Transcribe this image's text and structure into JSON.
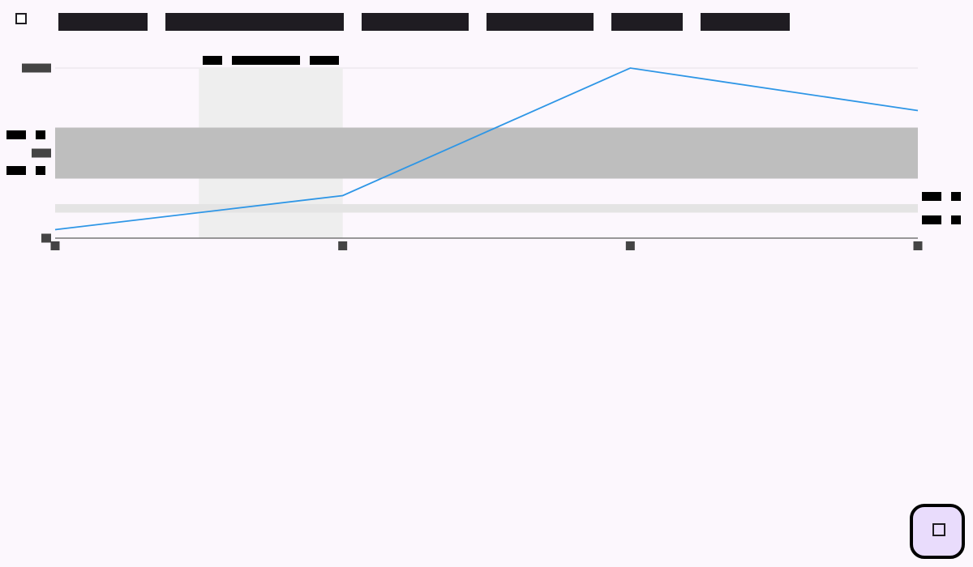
{
  "toolbar": {
    "select_all_checked": false,
    "tabs": [
      {
        "label": ""
      },
      {
        "label": ""
      },
      {
        "label": ""
      },
      {
        "label": ""
      },
      {
        "label": ""
      },
      {
        "label": ""
      }
    ]
  },
  "fab": {
    "icon": "square-icon"
  },
  "colors": {
    "background": "#fcf7fd",
    "series": "#2e96e6",
    "band_dark": "#bebebe",
    "band_light": "#e4e4e4",
    "highlight": "#eeeeee",
    "axis": "#777777",
    "tick": "#444444",
    "redaction": "#000000"
  },
  "chart_data": {
    "type": "line",
    "title": "",
    "xlabel": "",
    "ylabel": "",
    "x": [
      0,
      1,
      2,
      3
    ],
    "xlim": [
      0,
      3
    ],
    "ylim": [
      0,
      1
    ],
    "y_ticks": [
      0,
      0.5,
      1
    ],
    "grid": true,
    "series": [
      {
        "values": [
          0.05,
          0.25,
          1.0,
          0.75
        ]
      }
    ],
    "highlight_range_x": [
      0.5,
      1.0
    ],
    "highlight_label": "",
    "reference_bands": [
      {
        "y_range": [
          0.35,
          0.65
        ],
        "style": "dark",
        "labels": [
          "",
          ""
        ]
      },
      {
        "y_range": [
          0.15,
          0.2
        ],
        "style": "light",
        "labels": [
          "",
          ""
        ]
      }
    ]
  }
}
